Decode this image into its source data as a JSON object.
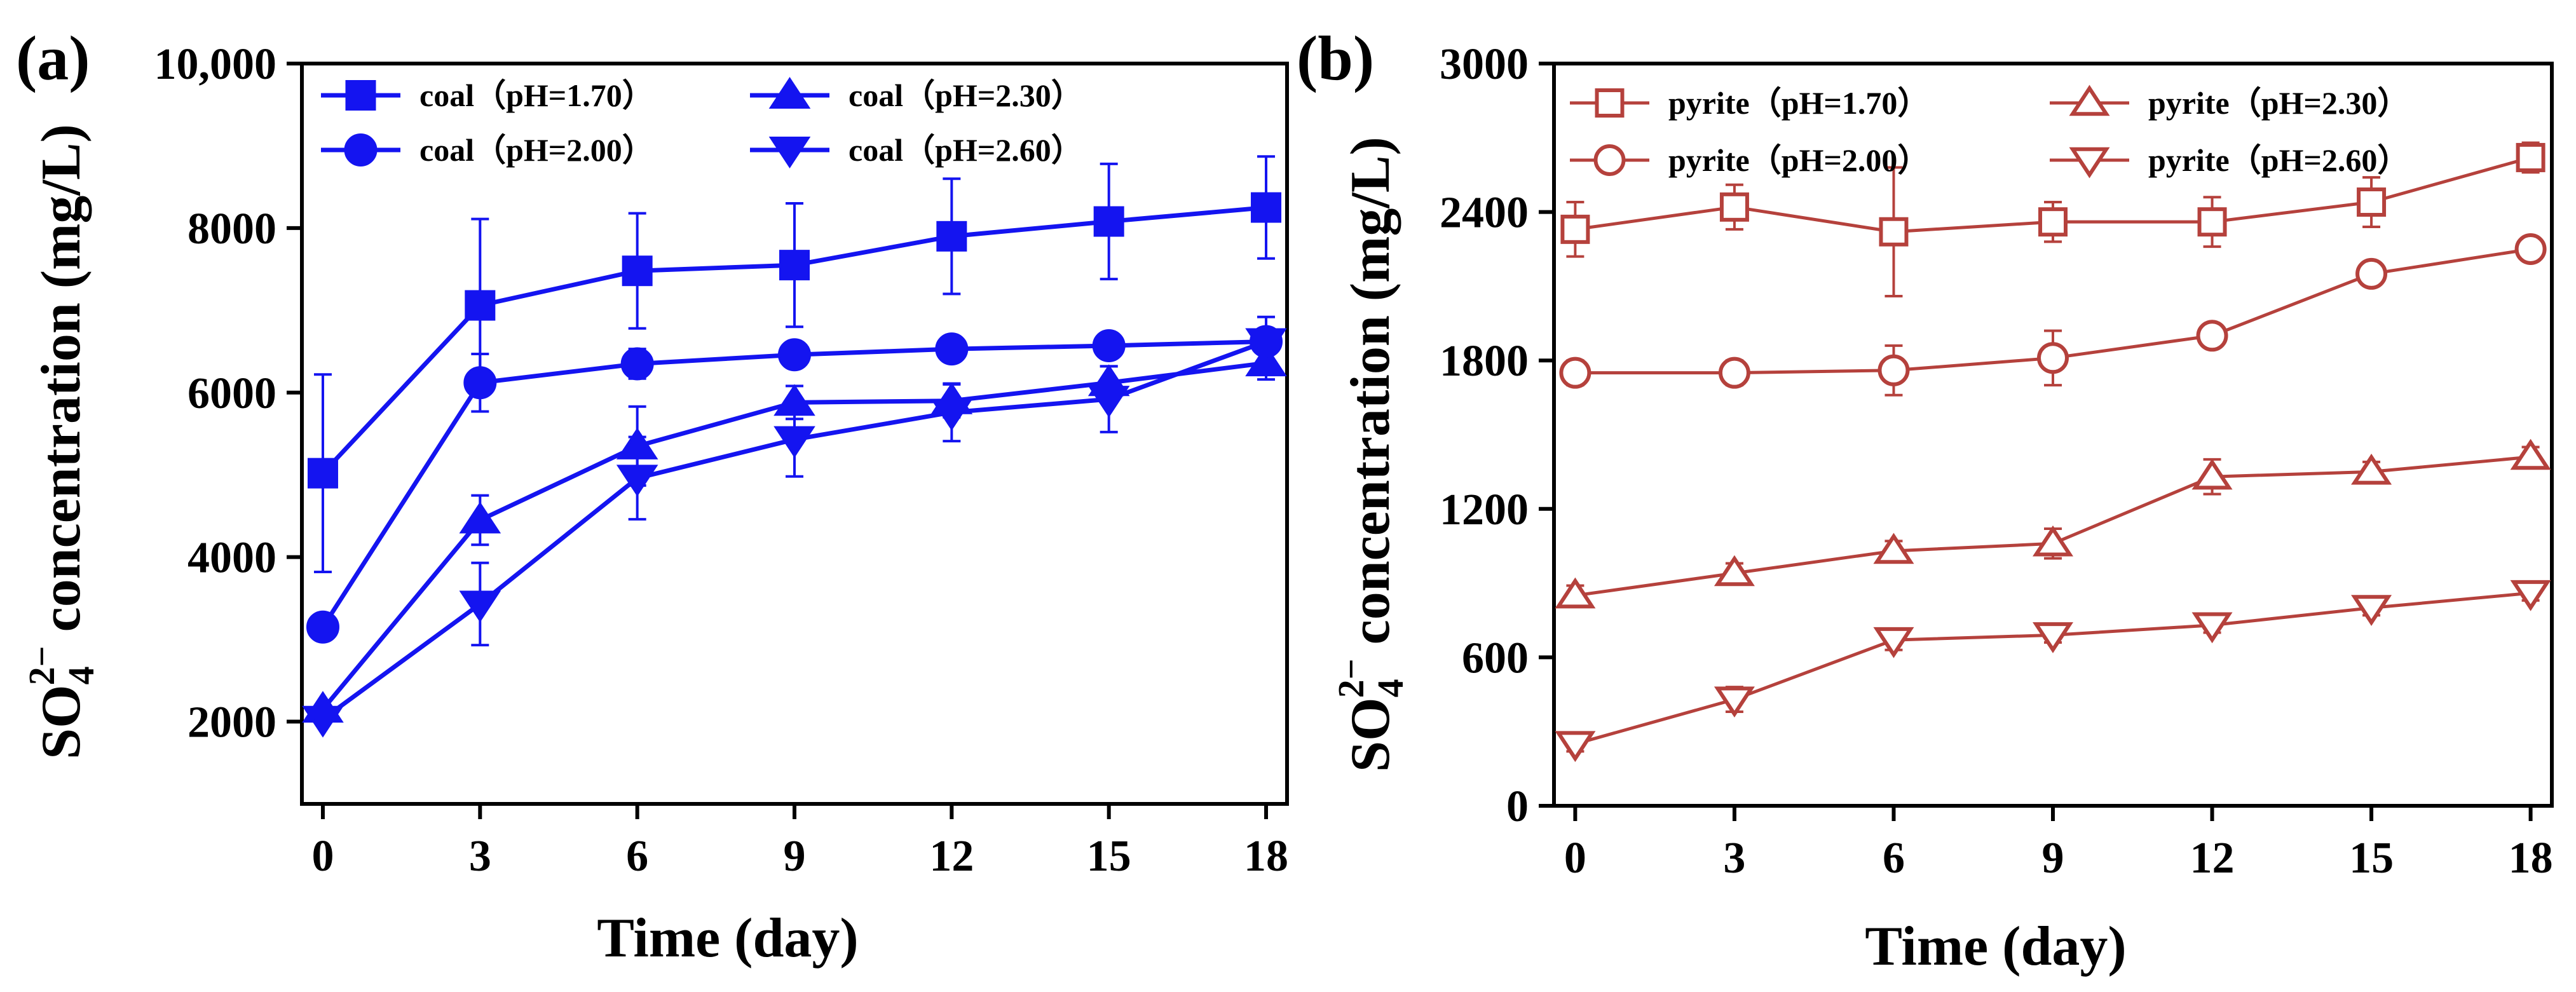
{
  "chart_data": [
    {
      "panel": "(a)",
      "type": "line",
      "xlabel": "Time (day)",
      "ylabel_main": "SO",
      "ylabel_sub": "4",
      "ylabel_sup": "2−",
      "ylabel_rest": " concentration (mg/L)",
      "xlim": [
        -0.4,
        18.4
      ],
      "ylim": [
        1000,
        10000
      ],
      "xticks": [
        0,
        3,
        6,
        9,
        12,
        15,
        18
      ],
      "xtick_labels": [
        "0",
        "3",
        "6",
        "9",
        "12",
        "15",
        "18"
      ],
      "yticks": [
        2000,
        4000,
        6000,
        8000,
        10000
      ],
      "ytick_labels": [
        "2000",
        "4000",
        "6000",
        "8000",
        "10,000"
      ],
      "color": "#1414F0",
      "legend_position": "top",
      "x": [
        0,
        3,
        6,
        9,
        12,
        15,
        18
      ],
      "series": [
        {
          "name": "coal（pH=1.70）",
          "marker": "square",
          "fill": "filled",
          "values": [
            5020,
            7060,
            7480,
            7550,
            7900,
            8080,
            8250
          ],
          "errors": [
            1200,
            1050,
            700,
            750,
            700,
            700,
            620
          ]
        },
        {
          "name": "coal（pH=2.00）",
          "marker": "circle",
          "fill": "filled",
          "values": [
            3150,
            6120,
            6350,
            6460,
            6530,
            6570,
            6620
          ],
          "errors": [
            0,
            350,
            180,
            80,
            60,
            60,
            60
          ]
        },
        {
          "name": "coal（pH=2.30）",
          "marker": "triangle-up",
          "fill": "filled",
          "values": [
            2150,
            4450,
            5350,
            5880,
            5900,
            6120,
            6360
          ],
          "errors": [
            0,
            300,
            480,
            200,
            200,
            200,
            200
          ]
        },
        {
          "name": "coal（pH=2.60）",
          "marker": "triangle-down",
          "fill": "filled",
          "values": [
            2030,
            3430,
            4960,
            5430,
            5760,
            5920,
            6620
          ],
          "errors": [
            0,
            500,
            500,
            450,
            350,
            400,
            300
          ]
        }
      ]
    },
    {
      "panel": "(b)",
      "type": "line",
      "xlabel": "Time (day)",
      "ylabel_main": "SO",
      "ylabel_sub": "4",
      "ylabel_sup": "2−",
      "ylabel_rest": " concentration (mg/L)",
      "xlim": [
        -0.4,
        18.4
      ],
      "ylim": [
        0,
        3000
      ],
      "xticks": [
        0,
        3,
        6,
        9,
        12,
        15,
        18
      ],
      "xtick_labels": [
        "0",
        "3",
        "6",
        "9",
        "12",
        "15",
        "18"
      ],
      "yticks": [
        0,
        600,
        1200,
        1800,
        2400,
        3000
      ],
      "ytick_labels": [
        "0",
        "600",
        "1200",
        "1800",
        "2400",
        "3000"
      ],
      "color": "#B5413C",
      "legend_position": "top",
      "x": [
        0,
        3,
        6,
        9,
        12,
        15,
        18
      ],
      "series": [
        {
          "name": "pyrite（pH=1.70）",
          "marker": "square",
          "fill": "open",
          "values": [
            2330,
            2420,
            2320,
            2360,
            2360,
            2440,
            2620
          ],
          "errors": [
            110,
            90,
            260,
            80,
            100,
            100,
            60
          ]
        },
        {
          "name": "pyrite（pH=2.00）",
          "marker": "circle",
          "fill": "open",
          "values": [
            1750,
            1750,
            1760,
            1810,
            1900,
            2150,
            2250
          ],
          "errors": [
            50,
            50,
            100,
            110,
            40,
            30,
            30
          ]
        },
        {
          "name": "pyrite（pH=2.30）",
          "marker": "triangle-up",
          "fill": "open",
          "values": [
            850,
            940,
            1030,
            1060,
            1330,
            1350,
            1410
          ],
          "errors": [
            40,
            40,
            40,
            60,
            70,
            40,
            40
          ]
        },
        {
          "name": "pyrite（pH=2.60）",
          "marker": "triangle-down",
          "fill": "open",
          "values": [
            250,
            430,
            670,
            690,
            730,
            800,
            860
          ],
          "errors": [
            30,
            50,
            40,
            30,
            30,
            30,
            30
          ]
        }
      ]
    }
  ]
}
